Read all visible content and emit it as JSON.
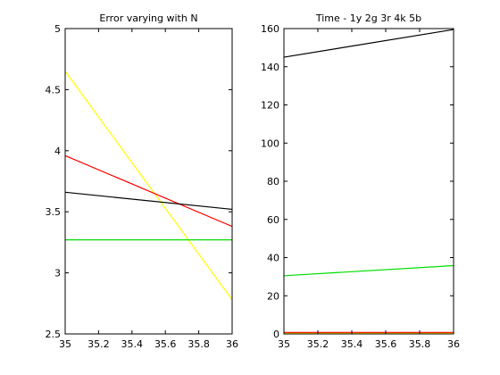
{
  "chart_data": [
    {
      "type": "line",
      "title": "Error varying with N",
      "xlabel": "",
      "ylabel": "",
      "xlim": [
        35,
        36
      ],
      "ylim": [
        2.5,
        5
      ],
      "xticks": [
        "35",
        "35.2",
        "35.4",
        "35.6",
        "35.8",
        "36"
      ],
      "yticks": [
        "2.5",
        "3",
        "3.5",
        "4",
        "4.5",
        "5"
      ],
      "grid": false,
      "series": [
        {
          "color": "#ffff00",
          "x": [
            35,
            36
          ],
          "y": [
            4.65,
            2.78
          ]
        },
        {
          "color": "#ff0000",
          "x": [
            35,
            36
          ],
          "y": [
            3.96,
            3.38
          ]
        },
        {
          "color": "#000000",
          "x": [
            35,
            36
          ],
          "y": [
            3.66,
            3.52
          ]
        },
        {
          "color": "#00dd00",
          "x": [
            35,
            36
          ],
          "y": [
            3.27,
            3.27
          ]
        }
      ]
    },
    {
      "type": "line",
      "title": "Time - 1y 2g 3r 4k 5b",
      "xlabel": "",
      "ylabel": "",
      "xlim": [
        35,
        36
      ],
      "ylim": [
        0,
        160
      ],
      "xticks": [
        "35",
        "35.2",
        "35.4",
        "35.6",
        "35.8",
        "36"
      ],
      "yticks": [
        "0",
        "20",
        "40",
        "60",
        "80",
        "100",
        "120",
        "140",
        "160"
      ],
      "grid": false,
      "series": [
        {
          "color": "#000000",
          "x": [
            35,
            36
          ],
          "y": [
            145,
            159.5
          ]
        },
        {
          "color": "#00dd00",
          "x": [
            35,
            36
          ],
          "y": [
            30.5,
            35.8
          ]
        },
        {
          "color": "#0000ff",
          "x": [
            35,
            36
          ],
          "y": [
            0.6,
            0.6
          ]
        },
        {
          "color": "#ffff00",
          "x": [
            35,
            36
          ],
          "y": [
            0.5,
            0.5
          ]
        },
        {
          "color": "#ff0000",
          "x": [
            35,
            36
          ],
          "y": [
            0.8,
            0.8
          ]
        }
      ]
    }
  ]
}
